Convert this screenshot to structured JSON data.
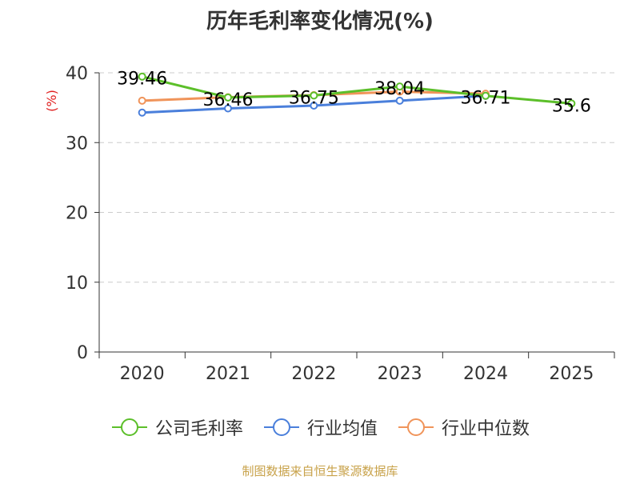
{
  "title": "历年毛利率变化情况(%)",
  "source_note": "制图数据来自恒生聚源数据库",
  "chart_data": {
    "type": "line",
    "title": "历年毛利率变化情况(%)",
    "ylabel": "(%)",
    "ylim": [
      0,
      40
    ],
    "yticks": [
      0,
      10,
      20,
      30,
      40
    ],
    "categories": [
      "2020",
      "2021",
      "2022",
      "2023",
      "2024",
      "2025"
    ],
    "grid": true,
    "legend_position": "bottom",
    "series": [
      {
        "name": "公司毛利率",
        "color": "#5cbf2a",
        "values": [
          39.46,
          36.46,
          36.75,
          38.04,
          36.71,
          35.6
        ],
        "labels": [
          "39.46",
          "36.46",
          "36.75",
          "38.04",
          "36.71",
          "35.6"
        ]
      },
      {
        "name": "行业均值",
        "color": "#4a7fdb",
        "values": [
          34.3,
          34.9,
          35.3,
          36.0,
          36.7,
          null
        ]
      },
      {
        "name": "行业中位数",
        "color": "#f0945a",
        "values": [
          36.0,
          36.5,
          36.8,
          37.3,
          37.0,
          null
        ]
      }
    ]
  }
}
